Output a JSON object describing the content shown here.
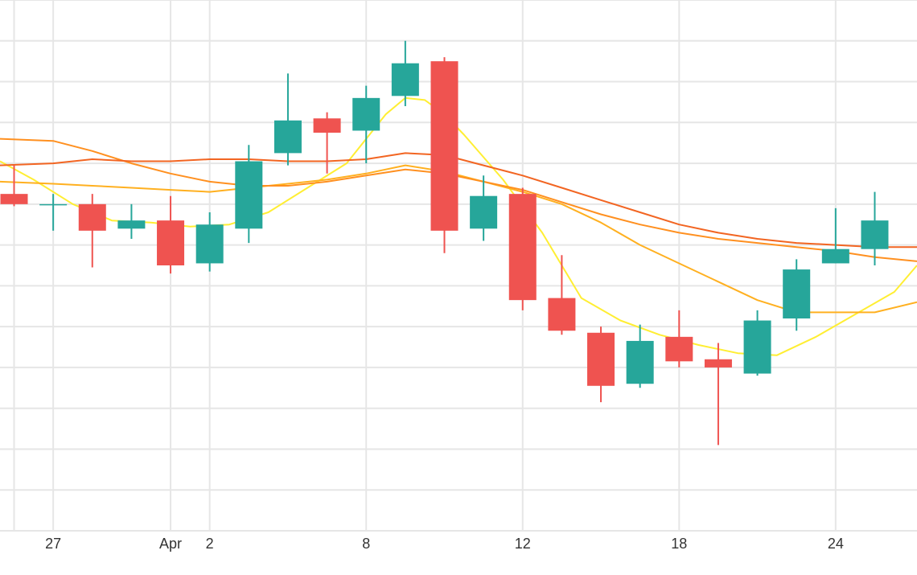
{
  "chart_data": {
    "type": "candlestick",
    "title": "",
    "xlabel": "",
    "ylabel": "",
    "x_tick_labels": [
      {
        "x": 0,
        "label": "27"
      },
      {
        "x": 3,
        "label": "Apr"
      },
      {
        "x": 4,
        "label": "2"
      },
      {
        "x": 8,
        "label": "8"
      },
      {
        "x": 12,
        "label": "12"
      },
      {
        "x": 16,
        "label": "18"
      },
      {
        "x": 20,
        "label": "24"
      }
    ],
    "xlim": [
      -1.36,
      22.08
    ],
    "ylim": [
      0,
      13
    ],
    "grid": true,
    "legend": "none",
    "colors": {
      "up": "#26a69a",
      "down": "#ef5350",
      "grid": "#e6e6e6",
      "ma_fast": "#ffee33",
      "ma_mid": "#ffb020",
      "ma_slow": "#ff9020",
      "ma_long": "#f26522"
    },
    "candles": [
      {
        "x": -1,
        "open": 8.25,
        "high": 8.95,
        "low": 7.95,
        "close": 8.0
      },
      {
        "x": 0,
        "open": 8.0,
        "high": 8.25,
        "low": 7.35,
        "close": 8.0
      },
      {
        "x": 1,
        "open": 8.0,
        "high": 8.25,
        "low": 6.45,
        "close": 7.35
      },
      {
        "x": 2,
        "open": 7.4,
        "high": 8.0,
        "low": 7.15,
        "close": 7.6
      },
      {
        "x": 3,
        "open": 7.6,
        "high": 8.2,
        "low": 6.3,
        "close": 6.5
      },
      {
        "x": 4,
        "open": 6.55,
        "high": 7.8,
        "low": 6.35,
        "close": 7.5
      },
      {
        "x": 5,
        "open": 7.4,
        "high": 9.45,
        "low": 7.05,
        "close": 9.05
      },
      {
        "x": 6,
        "open": 9.25,
        "high": 11.2,
        "low": 8.95,
        "close": 10.05
      },
      {
        "x": 7,
        "open": 10.1,
        "high": 10.25,
        "low": 8.75,
        "close": 9.75
      },
      {
        "x": 8,
        "open": 9.8,
        "high": 10.9,
        "low": 9.0,
        "close": 10.6
      },
      {
        "x": 9,
        "open": 10.65,
        "high": 12.0,
        "low": 10.4,
        "close": 11.45
      },
      {
        "x": 10,
        "open": 11.5,
        "high": 11.6,
        "low": 6.8,
        "close": 7.35
      },
      {
        "x": 11,
        "open": 7.4,
        "high": 8.7,
        "low": 7.1,
        "close": 8.2
      },
      {
        "x": 12,
        "open": 8.25,
        "high": 8.4,
        "low": 5.4,
        "close": 5.65
      },
      {
        "x": 13,
        "open": 5.7,
        "high": 6.75,
        "low": 4.8,
        "close": 4.9
      },
      {
        "x": 14,
        "open": 4.85,
        "high": 5.0,
        "low": 3.15,
        "close": 3.55
      },
      {
        "x": 15,
        "open": 3.6,
        "high": 5.05,
        "low": 3.5,
        "close": 4.65
      },
      {
        "x": 16,
        "open": 4.75,
        "high": 5.4,
        "low": 4.0,
        "close": 4.15
      },
      {
        "x": 17,
        "open": 4.2,
        "high": 4.6,
        "low": 2.1,
        "close": 4.0
      },
      {
        "x": 18,
        "open": 3.85,
        "high": 5.4,
        "low": 3.8,
        "close": 5.15
      },
      {
        "x": 19,
        "open": 5.2,
        "high": 6.65,
        "low": 4.9,
        "close": 6.4
      },
      {
        "x": 20,
        "open": 6.55,
        "high": 7.9,
        "low": 6.55,
        "close": 6.9
      },
      {
        "x": 21,
        "open": 6.9,
        "high": 8.3,
        "low": 6.5,
        "close": 7.6
      }
    ],
    "moving_averages": [
      {
        "style": "ma_fast",
        "x": [
          -1.36,
          -0.5,
          0.5,
          1.5,
          2.5,
          3.5,
          4.5,
          5.5,
          6.5,
          7.5,
          8.5,
          9.0,
          9.5,
          10.0,
          10.5,
          11.5,
          12.5,
          13.5,
          14.5,
          15.5,
          16.5,
          17.5,
          18.5,
          19.5,
          20.5,
          21.5,
          22.08
        ],
        "y": [
          9.05,
          8.6,
          8.0,
          7.6,
          7.55,
          7.45,
          7.5,
          7.8,
          8.4,
          9.0,
          10.2,
          10.6,
          10.55,
          10.2,
          9.7,
          8.6,
          7.3,
          5.7,
          5.15,
          4.8,
          4.55,
          4.35,
          4.3,
          4.75,
          5.3,
          5.85,
          6.5
        ]
      },
      {
        "style": "ma_mid",
        "x": [
          -1.36,
          0.0,
          1.0,
          2.0,
          3.0,
          4.0,
          5.0,
          6.0,
          7.0,
          8.0,
          9.0,
          10.0,
          11.0,
          12.0,
          13.0,
          14.0,
          15.0,
          16.0,
          17.0,
          18.0,
          19.0,
          20.0,
          21.0,
          22.08
        ],
        "y": [
          8.55,
          8.5,
          8.45,
          8.4,
          8.35,
          8.3,
          8.4,
          8.5,
          8.6,
          8.75,
          8.95,
          8.8,
          8.55,
          8.3,
          8.0,
          7.55,
          7.0,
          6.55,
          6.1,
          5.65,
          5.35,
          5.35,
          5.35,
          5.6
        ]
      },
      {
        "style": "ma_slow",
        "x": [
          -1.36,
          0.0,
          1.0,
          2.0,
          3.0,
          4.0,
          5.0,
          6.0,
          7.0,
          8.0,
          9.0,
          10.0,
          11.0,
          12.0,
          13.0,
          14.0,
          15.0,
          16.0,
          17.0,
          18.0,
          19.0,
          20.0,
          21.0,
          22.08
        ],
        "y": [
          9.6,
          9.55,
          9.3,
          9.0,
          8.75,
          8.55,
          8.45,
          8.45,
          8.55,
          8.7,
          8.85,
          8.75,
          8.55,
          8.35,
          8.05,
          7.75,
          7.5,
          7.3,
          7.15,
          7.05,
          6.95,
          6.85,
          6.7,
          6.6
        ]
      },
      {
        "style": "ma_long",
        "x": [
          -1.36,
          0.0,
          1.0,
          2.0,
          3.0,
          4.0,
          5.0,
          6.0,
          7.0,
          8.0,
          9.0,
          10.0,
          11.0,
          12.0,
          13.0,
          14.0,
          15.0,
          16.0,
          17.0,
          18.0,
          19.0,
          20.0,
          21.0,
          22.08
        ],
        "y": [
          8.95,
          9.0,
          9.1,
          9.05,
          9.05,
          9.1,
          9.1,
          9.05,
          9.05,
          9.1,
          9.25,
          9.2,
          8.95,
          8.7,
          8.4,
          8.1,
          7.8,
          7.5,
          7.3,
          7.15,
          7.05,
          7.0,
          6.95,
          6.95
        ]
      }
    ]
  }
}
